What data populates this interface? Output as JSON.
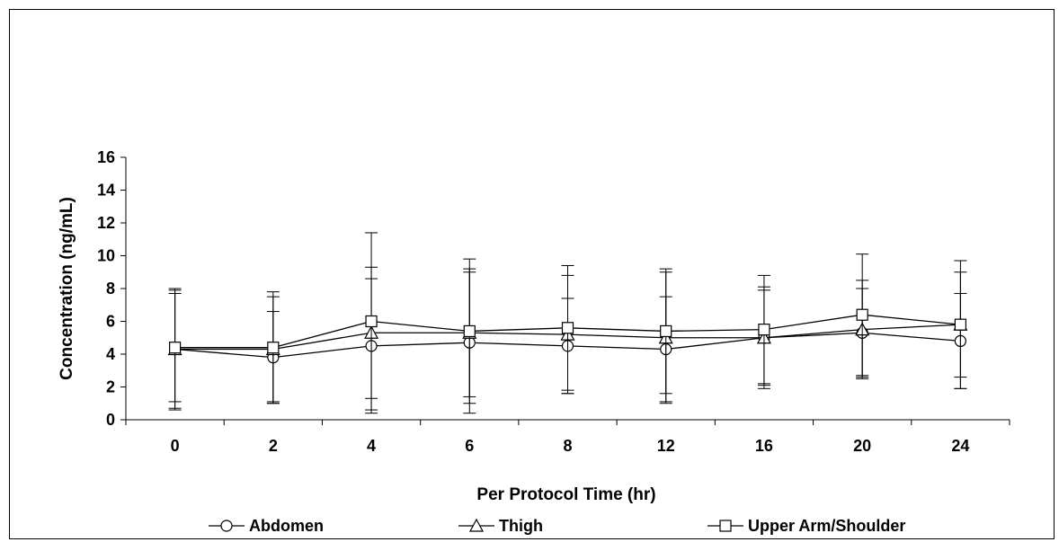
{
  "chart_data": {
    "type": "line",
    "title": "",
    "xlabel": "Per Protocol Time (hr)",
    "ylabel": "Concentration (ng/mL)",
    "ylim": [
      0,
      16
    ],
    "yticks": [
      0,
      2,
      4,
      6,
      8,
      10,
      12,
      14,
      16
    ],
    "categories": [
      "0",
      "2",
      "4",
      "6",
      "8",
      "12",
      "16",
      "20",
      "24"
    ],
    "grid": false,
    "legend_position": "bottom",
    "error_bars": true,
    "series": [
      {
        "name": "Abdomen",
        "marker": "circle",
        "values": [
          4.3,
          3.8,
          4.5,
          4.7,
          4.5,
          4.3,
          5.0,
          5.3,
          4.8
        ],
        "err_low": [
          3.6,
          2.8,
          4.1,
          4.3,
          2.9,
          3.2,
          3.1,
          2.7,
          2.9
        ],
        "err_high": [
          3.6,
          2.8,
          4.1,
          4.3,
          2.9,
          3.2,
          3.1,
          2.7,
          2.9
        ]
      },
      {
        "name": "Thigh",
        "marker": "triangle",
        "values": [
          4.3,
          4.3,
          5.3,
          5.3,
          5.2,
          5.0,
          5.0,
          5.5,
          5.8
        ],
        "err_low": [
          3.7,
          3.2,
          4.0,
          3.9,
          3.6,
          4.0,
          2.9,
          3.0,
          3.2
        ],
        "err_high": [
          3.7,
          3.2,
          4.0,
          3.9,
          3.6,
          4.0,
          2.9,
          3.0,
          3.2
        ]
      },
      {
        "name": "Upper Arm/Shoulder",
        "marker": "square",
        "values": [
          4.4,
          4.4,
          6.0,
          5.4,
          5.6,
          5.4,
          5.5,
          6.4,
          5.8
        ],
        "err_low": [
          3.3,
          3.4,
          5.4,
          4.4,
          3.8,
          3.8,
          3.3,
          3.7,
          3.9
        ],
        "err_high": [
          3.3,
          3.4,
          5.4,
          4.4,
          3.8,
          3.8,
          3.3,
          3.7,
          3.9
        ]
      }
    ],
    "colors": {
      "line": "#000000",
      "marker_fill": "#ffffff",
      "background": "#ffffff"
    }
  }
}
